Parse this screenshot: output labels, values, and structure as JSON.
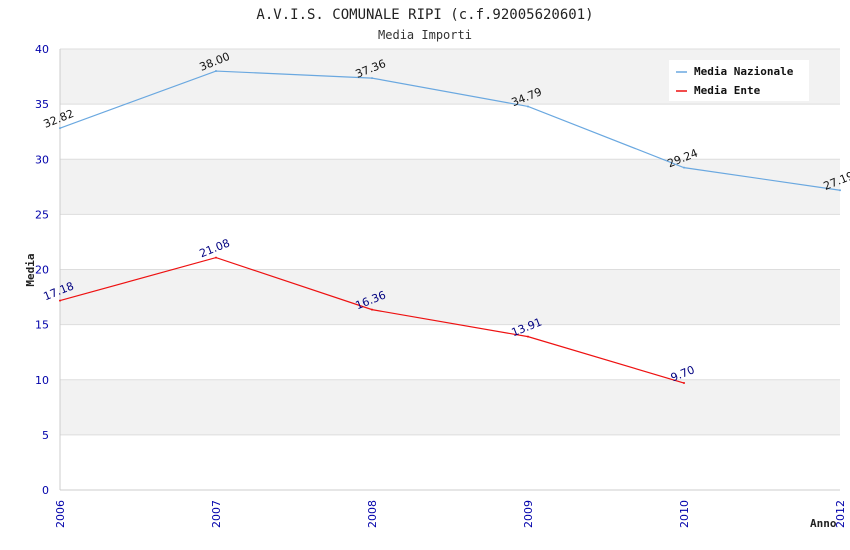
{
  "chart_data": {
    "type": "line",
    "title": "A.V.I.S. COMUNALE RIPI (c.f.92005620601)",
    "subtitle": "Media Importi",
    "xlabel": "Anno",
    "ylabel": "Media",
    "x": [
      "2006",
      "2007",
      "2008",
      "2009",
      "2010",
      "2012"
    ],
    "ylim": [
      0,
      40
    ],
    "yticks": [
      0,
      5,
      10,
      15,
      20,
      25,
      30,
      35,
      40
    ],
    "grid": true,
    "legend_position": "top-right",
    "series": [
      {
        "name": "Media Nazionale",
        "color": "#6aa8e0",
        "label_color": "#111111",
        "values": [
          32.82,
          38.0,
          37.36,
          34.79,
          29.24,
          27.19
        ],
        "labels": [
          "32.82",
          "38.00",
          "37.36",
          "34.79",
          "29.24",
          "27.19"
        ]
      },
      {
        "name": "Media Ente",
        "color": "#ee1111",
        "label_color": "#000080",
        "values": [
          17.18,
          21.08,
          16.36,
          13.91,
          9.7,
          null
        ],
        "labels": [
          "17.18",
          "21.08",
          "16.36",
          "13.91",
          "9.70",
          null
        ]
      }
    ]
  }
}
